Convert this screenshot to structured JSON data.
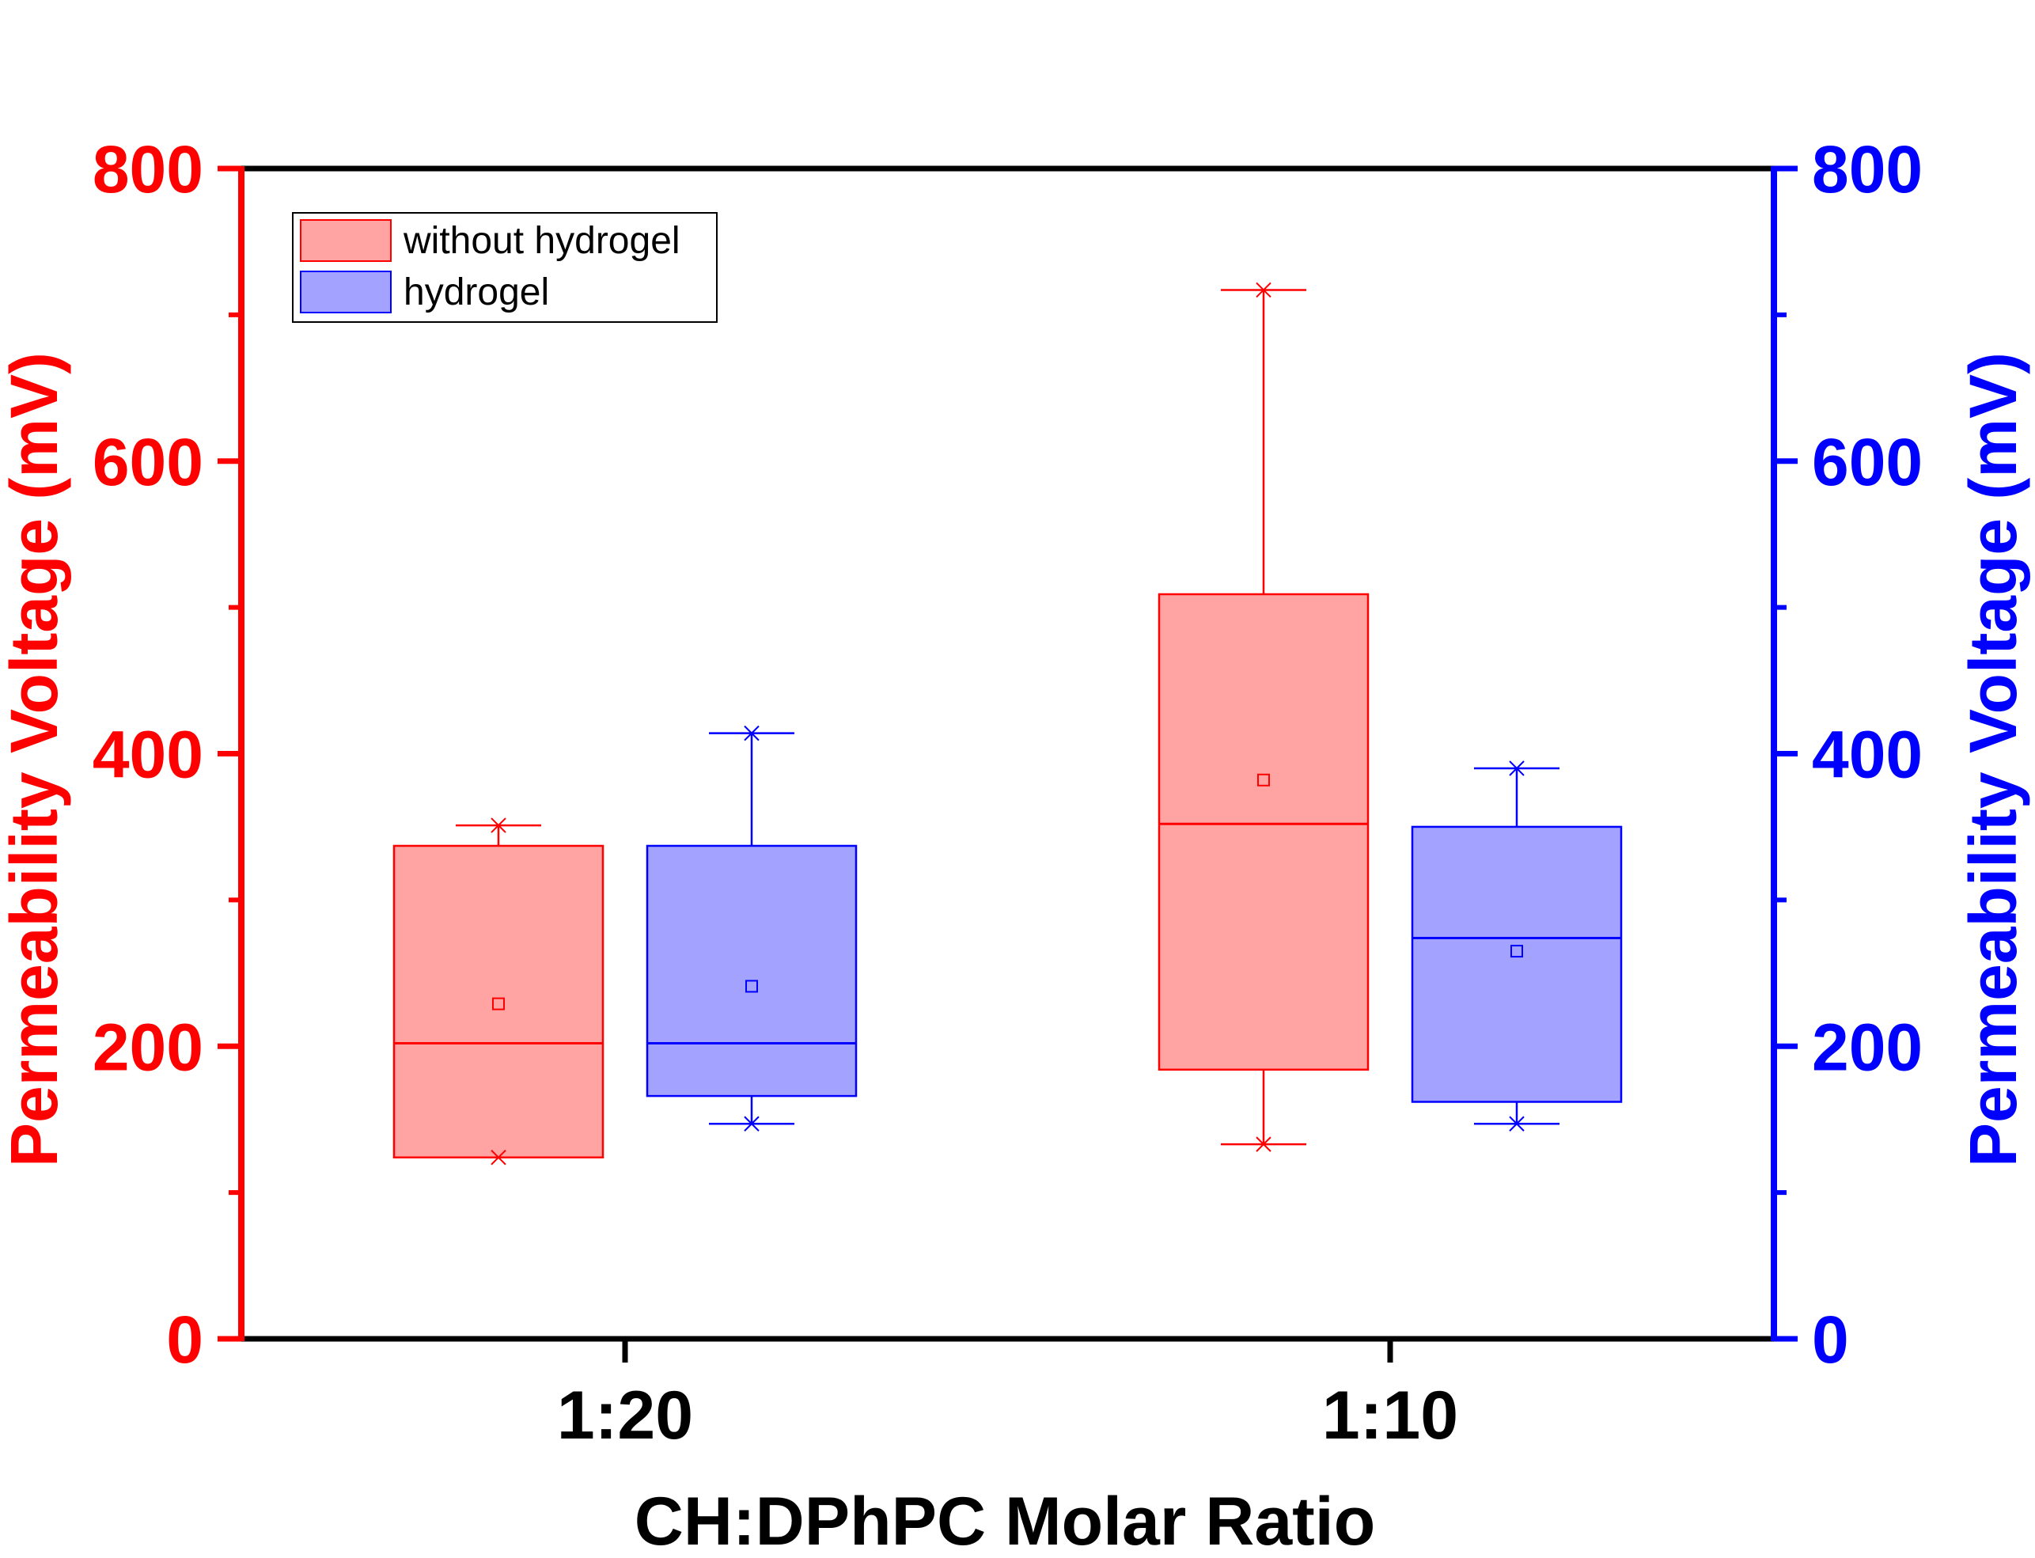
{
  "chart_data": {
    "type": "box",
    "xlabel": "CH:DPhPC Molar Ratio",
    "ylabel_left": "Permeability Voltage (mV)",
    "ylabel_right": "Permeability Voltage (mV)",
    "ylim": [
      0,
      800
    ],
    "yticks": [
      0,
      200,
      400,
      600,
      800
    ],
    "yticks_minor": [
      100,
      300,
      500,
      700
    ],
    "categories": [
      "1:20",
      "1:10"
    ],
    "legend": {
      "placement": "top-left",
      "entries": [
        "without hydrogel",
        "hydrogel"
      ]
    },
    "colors": {
      "left_axis": "#ff0000",
      "right_axis": "#0000ff",
      "without_hydrogel_fill": "#ffa3a3",
      "without_hydrogel_edge": "#ff0000",
      "hydrogel_fill": "#a3a3ff",
      "hydrogel_edge": "#0000ff"
    },
    "series": [
      {
        "name": "without hydrogel",
        "boxes": [
          {
            "category": "1:20",
            "min": 124,
            "q1": 124,
            "median": 202,
            "q3": 337,
            "max": 351,
            "mean": 229
          },
          {
            "category": "1:10",
            "min": 133,
            "q1": 184,
            "median": 352,
            "q3": 509,
            "max": 717,
            "mean": 382
          }
        ]
      },
      {
        "name": "hydrogel",
        "boxes": [
          {
            "category": "1:20",
            "min": 147,
            "q1": 166,
            "median": 202,
            "q3": 337,
            "max": 414,
            "mean": 241
          },
          {
            "category": "1:10",
            "min": 147,
            "q1": 162,
            "median": 274,
            "q3": 350,
            "max": 390,
            "mean": 265
          }
        ]
      }
    ]
  }
}
